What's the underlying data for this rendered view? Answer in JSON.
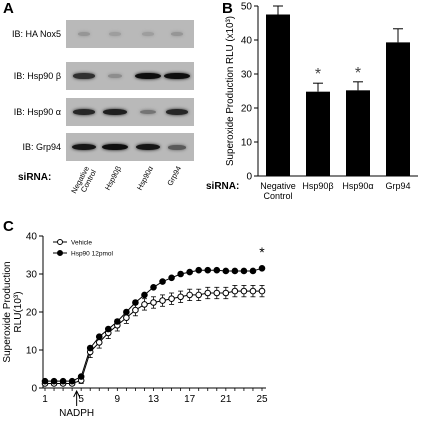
{
  "panel_a": {
    "letter": "A",
    "blots": [
      {
        "label": "IB: HA Nox5",
        "intensity": [
          0.15,
          0.1,
          0.1,
          0.15
        ]
      },
      {
        "label": "IB: Hsp90 β",
        "intensity": [
          0.75,
          0.2,
          0.95,
          0.95
        ]
      },
      {
        "label": "IB: Hsp90 α",
        "intensity": [
          0.8,
          0.85,
          0.35,
          0.8
        ]
      },
      {
        "label": "IB: Grp94",
        "intensity": [
          0.9,
          0.95,
          0.9,
          0.5
        ]
      }
    ],
    "sirna_label": "siRNA:",
    "lanes": [
      "Negative Control",
      "Hsp90β",
      "Hsp90α",
      "Grp94"
    ]
  },
  "chart_data": [
    {
      "panel": "B",
      "type": "bar",
      "ylabel": "Superoxide Production RLU (x10³)",
      "ylim": [
        0,
        50
      ],
      "yticks": [
        0,
        10,
        20,
        30,
        40,
        50
      ],
      "categories": [
        "Negative Control",
        "Hsp90β",
        "Hsp90α",
        "Grp94"
      ],
      "values": [
        47.5,
        24.8,
        25.2,
        39.3
      ],
      "errors": [
        2.5,
        2.5,
        2.5,
        4.0
      ],
      "significance": [
        "",
        "*",
        "*",
        ""
      ],
      "x_title": "siRNA:",
      "color": "#000000"
    },
    {
      "panel": "C",
      "type": "line",
      "ylabel": "Superoxide Production RLU(10³)",
      "ylim": [
        0,
        40
      ],
      "yticks": [
        0,
        10,
        20,
        30,
        40
      ],
      "xlim": [
        1,
        25
      ],
      "xticks": [
        1,
        5,
        9,
        13,
        17,
        21,
        25
      ],
      "legend_position": "top-left",
      "annotation": {
        "label": "NADPH",
        "x": 4.5
      },
      "significance_marker": {
        "label": "*",
        "x": 25
      },
      "series": [
        {
          "name": "Vehicle",
          "marker": "open-circle",
          "x": [
            1,
            2,
            3,
            4,
            5,
            6,
            7,
            8,
            9,
            10,
            11,
            12,
            13,
            14,
            15,
            16,
            17,
            18,
            19,
            20,
            21,
            22,
            23,
            24,
            25
          ],
          "y": [
            1.2,
            1.2,
            1.2,
            1.2,
            2,
            9.5,
            12,
            14.5,
            16.5,
            18.5,
            20.5,
            22,
            22.5,
            23,
            23.5,
            24,
            24.5,
            24.5,
            25,
            25,
            25,
            25.5,
            25.5,
            25.5,
            25.5
          ],
          "errors": [
            0.5,
            0.5,
            0.5,
            0.5,
            0.8,
            1.5,
            1.5,
            1.5,
            1.5,
            1.5,
            1.5,
            1.5,
            1.5,
            1.5,
            1.5,
            1.5,
            1.5,
            1.5,
            1.5,
            1.5,
            1.5,
            1.5,
            1.5,
            1.5,
            1.5
          ]
        },
        {
          "name": "Hsp90 12pmol",
          "marker": "filled-circle",
          "x": [
            1,
            2,
            3,
            4,
            5,
            6,
            7,
            8,
            9,
            10,
            11,
            12,
            13,
            14,
            15,
            16,
            17,
            18,
            19,
            20,
            21,
            22,
            23,
            24,
            25
          ],
          "y": [
            1.8,
            1.8,
            1.8,
            1.8,
            3,
            10.5,
            13.5,
            15.5,
            17.5,
            20,
            22.5,
            24.5,
            26.5,
            28,
            29,
            30,
            30.5,
            31,
            31,
            31,
            30.8,
            30.8,
            30.8,
            30.8,
            31.5
          ],
          "errors": [
            0,
            0,
            0,
            0,
            0,
            0,
            0,
            0,
            0,
            0,
            0,
            0,
            0,
            0,
            0,
            0,
            0,
            0,
            0,
            0,
            0,
            0,
            0,
            0,
            0
          ]
        }
      ]
    }
  ]
}
